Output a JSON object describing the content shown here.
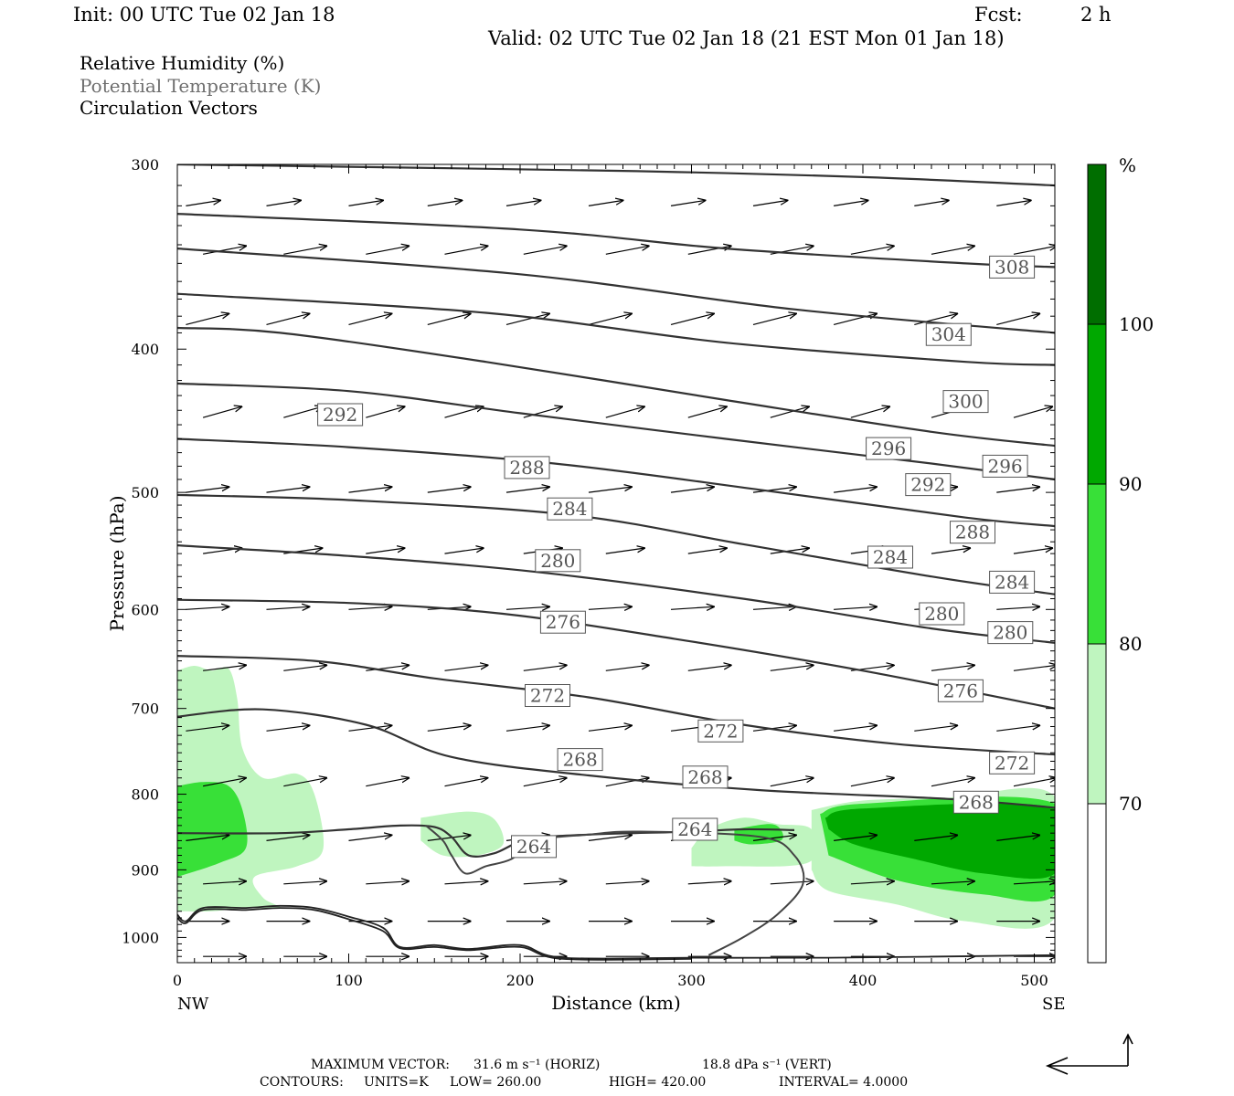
{
  "header": {
    "init": "Init: 00 UTC Tue 02 Jan 18",
    "fcst_label": "Fcst:",
    "fcst_value": "2 h",
    "valid": "Valid: 02 UTC Tue 02 Jan 18 (21 EST Mon 01 Jan 18)"
  },
  "legend": {
    "rh": "Relative Humidity (%)",
    "theta": "Potential Temperature (K)",
    "vectors": "Circulation Vectors"
  },
  "colors": {
    "rh_70_80": "#bff5bf",
    "rh_80_90": "#38e038",
    "rh_90_100": "#00a800",
    "rh_100": "#006e00",
    "contour": "#333333",
    "background": "#ffffff"
  },
  "footer": {
    "max_vector_label": "MAXIMUM VECTOR:",
    "max_vector_horiz": "31.6 m s⁻¹ (HORIZ)",
    "max_vector_vert": "18.8 dPa s⁻¹ (VERT)",
    "contours_label": "CONTOURS:",
    "units": "UNITS=K",
    "low": "LOW= 260.00",
    "high": "HIGH= 420.00",
    "interval": "INTERVAL= 4.0000"
  },
  "chart_data": {
    "type": "cross-section",
    "ylabel": "Pressure (hPa)",
    "xlabel": "Distance (km)",
    "xlim": [
      0,
      512
    ],
    "ylim": [
      1040,
      300
    ],
    "y_log": true,
    "x_ticks": [
      0,
      100,
      200,
      300,
      400,
      500
    ],
    "y_ticks": [
      300,
      400,
      500,
      600,
      700,
      800,
      900,
      1000
    ],
    "x_end_labels": {
      "left": "NW",
      "right": "SE"
    },
    "colorbar": {
      "unit": "%",
      "levels": [
        "70",
        "80",
        "90",
        "100"
      ]
    },
    "theta_contours": [
      {
        "level": 308,
        "points": [
          [
            0,
            300
          ],
          [
            256,
            303
          ],
          [
            400,
            306
          ],
          [
            512,
            310
          ]
        ]
      },
      {
        "level": 304,
        "points": [
          [
            0,
            324
          ],
          [
            200,
            332
          ],
          [
            320,
            342
          ],
          [
            460,
            350
          ],
          [
            512,
            352
          ]
        ]
      },
      {
        "level": 300,
        "points": [
          [
            0,
            342
          ],
          [
            200,
            356
          ],
          [
            360,
            376
          ],
          [
            512,
            390
          ]
        ]
      },
      {
        "level": 300,
        "points": [
          [
            0,
            367
          ],
          [
            180,
            378
          ],
          [
            320,
            396
          ],
          [
            460,
            408
          ],
          [
            512,
            410
          ]
        ]
      },
      {
        "level": 296,
        "points": [
          [
            0,
            387
          ],
          [
            60,
            390
          ],
          [
            180,
            408
          ],
          [
            320,
            433
          ],
          [
            440,
            455
          ],
          [
            512,
            465
          ]
        ]
      },
      {
        "level": 292,
        "points": [
          [
            0,
            422
          ],
          [
            100,
            427
          ],
          [
            200,
            442
          ],
          [
            320,
            460
          ],
          [
            440,
            478
          ],
          [
            512,
            490
          ]
        ]
      },
      {
        "level": 288,
        "points": [
          [
            0,
            460
          ],
          [
            100,
            466
          ],
          [
            220,
            478
          ],
          [
            340,
            498
          ],
          [
            460,
            520
          ],
          [
            512,
            527
          ]
        ]
      },
      {
        "level": 284,
        "points": [
          [
            0,
            502
          ],
          [
            100,
            506
          ],
          [
            230,
            518
          ],
          [
            330,
            542
          ],
          [
            440,
            570
          ],
          [
            512,
            586
          ]
        ]
      },
      {
        "level": 280,
        "points": [
          [
            0,
            543
          ],
          [
            100,
            552
          ],
          [
            210,
            566
          ],
          [
            330,
            590
          ],
          [
            440,
            618
          ],
          [
            512,
            632
          ]
        ]
      },
      {
        "level": 276,
        "points": [
          [
            0,
            591
          ],
          [
            100,
            594
          ],
          [
            190,
            604
          ],
          [
            290,
            628
          ],
          [
            400,
            660
          ],
          [
            512,
            700
          ]
        ]
      },
      {
        "level": 272,
        "points": [
          [
            0,
            645
          ],
          [
            80,
            650
          ],
          [
            150,
            668
          ],
          [
            240,
            688
          ],
          [
            330,
            718
          ],
          [
            420,
            740
          ],
          [
            512,
            752
          ]
        ]
      },
      {
        "level": 268,
        "points": [
          [
            0,
            709
          ],
          [
            50,
            701
          ],
          [
            110,
            718
          ],
          [
            160,
            755
          ],
          [
            240,
            777
          ],
          [
            340,
            795
          ],
          [
            450,
            806
          ],
          [
            512,
            817
          ]
        ]
      },
      {
        "level": 264,
        "points": [
          [
            0,
            850
          ],
          [
            60,
            850
          ],
          [
            100,
            845
          ],
          [
            130,
            840
          ],
          [
            150,
            842
          ],
          [
            160,
            855
          ],
          [
            170,
            880
          ],
          [
            185,
            877
          ],
          [
            205,
            858
          ],
          [
            240,
            852
          ],
          [
            300,
            848
          ],
          [
            330,
            845
          ],
          [
            360,
            846
          ]
        ]
      }
    ],
    "theta_labels": [
      {
        "text": "308",
        "x": 487,
        "p": 352
      },
      {
        "text": "304",
        "x": 450,
        "p": 391
      },
      {
        "text": "300",
        "x": 460,
        "p": 434
      },
      {
        "text": "296",
        "x": 415,
        "p": 467
      },
      {
        "text": "296",
        "x": 483,
        "p": 480
      },
      {
        "text": "292",
        "x": 95,
        "p": 443
      },
      {
        "text": "292",
        "x": 438,
        "p": 494
      },
      {
        "text": "288",
        "x": 204,
        "p": 481
      },
      {
        "text": "288",
        "x": 464,
        "p": 532
      },
      {
        "text": "284",
        "x": 229,
        "p": 513
      },
      {
        "text": "284",
        "x": 416,
        "p": 553
      },
      {
        "text": "284",
        "x": 487,
        "p": 575
      },
      {
        "text": "280",
        "x": 222,
        "p": 556
      },
      {
        "text": "280",
        "x": 446,
        "p": 604
      },
      {
        "text": "280",
        "x": 486,
        "p": 622
      },
      {
        "text": "276",
        "x": 225,
        "p": 612
      },
      {
        "text": "276",
        "x": 457,
        "p": 681
      },
      {
        "text": "272",
        "x": 216,
        "p": 686
      },
      {
        "text": "272",
        "x": 317,
        "p": 725
      },
      {
        "text": "272",
        "x": 487,
        "p": 762
      },
      {
        "text": "268",
        "x": 235,
        "p": 758
      },
      {
        "text": "268",
        "x": 308,
        "p": 779
      },
      {
        "text": "268",
        "x": 466,
        "p": 810
      },
      {
        "text": "264",
        "x": 208,
        "p": 868
      },
      {
        "text": "264",
        "x": 302,
        "p": 845
      }
    ],
    "rh_regions": [
      {
        "level": "70-80",
        "points": [
          [
            0,
            660
          ],
          [
            10,
            655
          ],
          [
            20,
            660
          ],
          [
            30,
            658
          ],
          [
            35,
            690
          ],
          [
            38,
            745
          ],
          [
            50,
            780
          ],
          [
            70,
            775
          ],
          [
            80,
            800
          ],
          [
            85,
            872
          ],
          [
            70,
            895
          ],
          [
            45,
            910
          ],
          [
            50,
            940
          ],
          [
            60,
            955
          ],
          [
            40,
            955
          ],
          [
            20,
            960
          ],
          [
            0,
            960
          ]
        ]
      },
      {
        "level": "70-80",
        "points": [
          [
            142,
            830
          ],
          [
            170,
            822
          ],
          [
            185,
            832
          ],
          [
            190,
            865
          ],
          [
            175,
            880
          ],
          [
            155,
            880
          ],
          [
            142,
            860
          ]
        ]
      },
      {
        "level": "70-80",
        "points": [
          [
            300,
            870
          ],
          [
            310,
            845
          ],
          [
            330,
            830
          ],
          [
            350,
            838
          ],
          [
            370,
            845
          ],
          [
            368,
            890
          ],
          [
            320,
            895
          ],
          [
            300,
            895
          ]
        ]
      },
      {
        "level": "70-80",
        "points": [
          [
            370,
            820
          ],
          [
            400,
            808
          ],
          [
            450,
            805
          ],
          [
            512,
            803
          ],
          [
            512,
            970
          ],
          [
            460,
            975
          ],
          [
            420,
            950
          ],
          [
            380,
            930
          ],
          [
            370,
            900
          ]
        ]
      },
      {
        "level": "80-90",
        "points": [
          [
            0,
            790
          ],
          [
            15,
            785
          ],
          [
            30,
            790
          ],
          [
            38,
            820
          ],
          [
            40,
            870
          ],
          [
            25,
            890
          ],
          [
            0,
            910
          ]
        ]
      },
      {
        "level": "80-90",
        "points": [
          [
            325,
            845
          ],
          [
            345,
            838
          ],
          [
            352,
            845
          ],
          [
            352,
            860
          ],
          [
            335,
            865
          ],
          [
            325,
            860
          ]
        ]
      },
      {
        "level": "80-90",
        "points": [
          [
            375,
            825
          ],
          [
            400,
            812
          ],
          [
            512,
            812
          ],
          [
            512,
            935
          ],
          [
            470,
            935
          ],
          [
            420,
            915
          ],
          [
            380,
            880
          ]
        ]
      },
      {
        "level": "90-100",
        "points": [
          [
            378,
            830
          ],
          [
            400,
            818
          ],
          [
            512,
            818
          ],
          [
            512,
            905
          ],
          [
            470,
            905
          ],
          [
            430,
            885
          ],
          [
            395,
            865
          ],
          [
            380,
            845
          ]
        ]
      }
    ],
    "terrain_lines": [
      {
        "points": [
          [
            0,
            965
          ],
          [
            5,
            975
          ],
          [
            15,
            955
          ],
          [
            40,
            955
          ],
          [
            60,
            952
          ],
          [
            80,
            955
          ],
          [
            100,
            968
          ],
          [
            120,
            985
          ],
          [
            130,
            1015
          ],
          [
            150,
            1012
          ],
          [
            170,
            1018
          ],
          [
            200,
            1012
          ],
          [
            225,
            1032
          ],
          [
            300,
            1032
          ],
          [
            380,
            1032
          ],
          [
            512,
            1028
          ]
        ]
      },
      {
        "points": [
          [
            0,
            970
          ],
          [
            5,
            978
          ],
          [
            15,
            958
          ],
          [
            40,
            958
          ],
          [
            60,
            955
          ],
          [
            80,
            958
          ],
          [
            100,
            972
          ],
          [
            120,
            990
          ],
          [
            130,
            1017
          ],
          [
            150,
            1015
          ],
          [
            170,
            1020
          ],
          [
            200,
            1015
          ],
          [
            225,
            1034
          ],
          [
            300,
            1034
          ]
        ]
      }
    ],
    "boundary_line": {
      "points": [
        [
          145,
          840
        ],
        [
          155,
          860
        ],
        [
          160,
          880
        ],
        [
          168,
          905
        ],
        [
          180,
          895
        ],
        [
          195,
          885
        ],
        [
          210,
          860
        ],
        [
          240,
          852
        ],
        [
          270,
          848
        ],
        [
          340,
          855
        ],
        [
          360,
          880
        ],
        [
          365,
          920
        ],
        [
          350,
          965
        ],
        [
          330,
          1000
        ],
        [
          310,
          1028
        ]
      ]
    },
    "vectors": {
      "columns_km": [
        5,
        52,
        100,
        146,
        192,
        240,
        288,
        336,
        383,
        430,
        478
      ],
      "levels_hpa": [
        320,
        345,
        385,
        445,
        500,
        550,
        600,
        660,
        725,
        790,
        860,
        920,
        975,
        1030
      ],
      "dx": [
        8,
        10,
        10,
        9,
        10,
        9,
        10,
        10,
        10,
        10,
        10,
        10,
        10,
        10
      ],
      "dy": [
        -2,
        -3,
        -4,
        -4,
        -2,
        -2,
        -1,
        -2,
        -2,
        -3,
        -2,
        -1,
        0,
        0
      ]
    }
  }
}
